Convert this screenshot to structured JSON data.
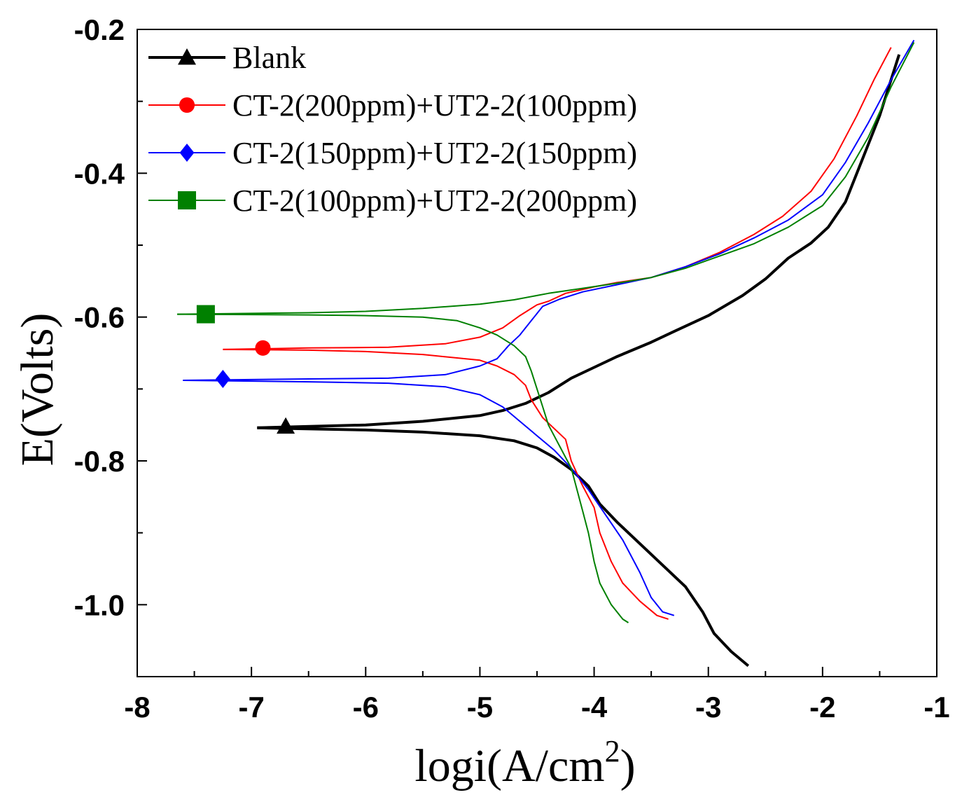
{
  "chart_data": {
    "type": "line",
    "title": "",
    "xlabel": "logi(A/cm",
    "xlabel_superscript": "2",
    "xlabel_close": ")",
    "ylabel": "E(Volts)",
    "xlim": [
      -8,
      -1
    ],
    "ylim": [
      -1.1,
      -0.2
    ],
    "x_ticks": [
      -8,
      -7,
      -6,
      -5,
      -4,
      -3,
      -2,
      -1
    ],
    "x_tick_labels": [
      "-8",
      "-7",
      "-6",
      "-5",
      "-4",
      "-3",
      "-2",
      "-1"
    ],
    "y_ticks": [
      -1.0,
      -0.8,
      -0.6,
      -0.4,
      -0.2
    ],
    "y_tick_labels": [
      "-1.0",
      "-0.8",
      "-0.6",
      "-0.4",
      "-0.2"
    ],
    "legend_position": "top-left",
    "series": [
      {
        "name": "Blank",
        "color": "#000000",
        "marker": "triangle",
        "marker_at": [
          -6.7,
          -0.752
        ],
        "anodic": [
          [
            -6.95,
            -0.754
          ],
          [
            -6.0,
            -0.75
          ],
          [
            -5.5,
            -0.745
          ],
          [
            -5.0,
            -0.737
          ],
          [
            -4.8,
            -0.73
          ],
          [
            -4.6,
            -0.72
          ],
          [
            -4.4,
            -0.705
          ],
          [
            -4.2,
            -0.685
          ],
          [
            -4.0,
            -0.67
          ],
          [
            -3.8,
            -0.655
          ],
          [
            -3.5,
            -0.635
          ],
          [
            -3.3,
            -0.62
          ],
          [
            -3.0,
            -0.598
          ],
          [
            -2.7,
            -0.57
          ],
          [
            -2.5,
            -0.547
          ],
          [
            -2.3,
            -0.518
          ],
          [
            -2.1,
            -0.497
          ],
          [
            -1.95,
            -0.475
          ],
          [
            -1.8,
            -0.44
          ],
          [
            -1.65,
            -0.38
          ],
          [
            -1.5,
            -0.32
          ],
          [
            -1.4,
            -0.27
          ],
          [
            -1.33,
            -0.235
          ]
        ],
        "cathodic": [
          [
            -6.95,
            -0.754
          ],
          [
            -6.0,
            -0.757
          ],
          [
            -5.5,
            -0.76
          ],
          [
            -5.0,
            -0.765
          ],
          [
            -4.7,
            -0.772
          ],
          [
            -4.5,
            -0.782
          ],
          [
            -4.35,
            -0.795
          ],
          [
            -4.2,
            -0.812
          ],
          [
            -4.05,
            -0.835
          ],
          [
            -3.95,
            -0.86
          ],
          [
            -3.8,
            -0.885
          ],
          [
            -3.6,
            -0.915
          ],
          [
            -3.4,
            -0.945
          ],
          [
            -3.2,
            -0.975
          ],
          [
            -3.05,
            -1.01
          ],
          [
            -2.95,
            -1.04
          ],
          [
            -2.8,
            -1.065
          ],
          [
            -2.65,
            -1.085
          ]
        ]
      },
      {
        "name": "CT-2(200ppm)+UT2-2(100ppm)",
        "color": "#ff0000",
        "marker": "circle",
        "marker_at": [
          -6.9,
          -0.643
        ],
        "anodic": [
          [
            -7.25,
            -0.645
          ],
          [
            -6.5,
            -0.643
          ],
          [
            -5.8,
            -0.642
          ],
          [
            -5.3,
            -0.637
          ],
          [
            -5.0,
            -0.628
          ],
          [
            -4.8,
            -0.615
          ],
          [
            -4.65,
            -0.598
          ],
          [
            -4.5,
            -0.583
          ],
          [
            -4.4,
            -0.578
          ],
          [
            -4.25,
            -0.567
          ],
          [
            -4.0,
            -0.558
          ],
          [
            -3.8,
            -0.552
          ],
          [
            -3.5,
            -0.545
          ],
          [
            -3.2,
            -0.53
          ],
          [
            -2.9,
            -0.51
          ],
          [
            -2.6,
            -0.485
          ],
          [
            -2.35,
            -0.46
          ],
          [
            -2.1,
            -0.425
          ],
          [
            -1.9,
            -0.38
          ],
          [
            -1.7,
            -0.32
          ],
          [
            -1.55,
            -0.27
          ],
          [
            -1.4,
            -0.225
          ]
        ],
        "cathodic": [
          [
            -7.25,
            -0.645
          ],
          [
            -6.5,
            -0.646
          ],
          [
            -6.0,
            -0.648
          ],
          [
            -5.5,
            -0.652
          ],
          [
            -5.0,
            -0.66
          ],
          [
            -4.85,
            -0.668
          ],
          [
            -4.7,
            -0.68
          ],
          [
            -4.6,
            -0.695
          ],
          [
            -4.55,
            -0.715
          ],
          [
            -4.45,
            -0.74
          ],
          [
            -4.35,
            -0.755
          ],
          [
            -4.25,
            -0.77
          ],
          [
            -4.2,
            -0.8
          ],
          [
            -4.1,
            -0.835
          ],
          [
            -4.0,
            -0.865
          ],
          [
            -3.95,
            -0.9
          ],
          [
            -3.85,
            -0.94
          ],
          [
            -3.75,
            -0.97
          ],
          [
            -3.6,
            -0.995
          ],
          [
            -3.45,
            -1.015
          ],
          [
            -3.35,
            -1.02
          ]
        ]
      },
      {
        "name": "CT-2(150ppm)+UT2-2(150ppm)",
        "color": "#0000ff",
        "marker": "diamond",
        "marker_at": [
          -7.25,
          -0.686
        ],
        "anodic": [
          [
            -7.6,
            -0.688
          ],
          [
            -6.5,
            -0.686
          ],
          [
            -5.8,
            -0.685
          ],
          [
            -5.3,
            -0.68
          ],
          [
            -5.0,
            -0.668
          ],
          [
            -4.85,
            -0.658
          ],
          [
            -4.75,
            -0.64
          ],
          [
            -4.65,
            -0.625
          ],
          [
            -4.55,
            -0.605
          ],
          [
            -4.45,
            -0.585
          ],
          [
            -4.3,
            -0.575
          ],
          [
            -4.1,
            -0.565
          ],
          [
            -3.8,
            -0.555
          ],
          [
            -3.5,
            -0.545
          ],
          [
            -3.2,
            -0.53
          ],
          [
            -2.9,
            -0.512
          ],
          [
            -2.6,
            -0.49
          ],
          [
            -2.3,
            -0.465
          ],
          [
            -2.0,
            -0.43
          ],
          [
            -1.8,
            -0.385
          ],
          [
            -1.6,
            -0.33
          ],
          [
            -1.4,
            -0.27
          ],
          [
            -1.2,
            -0.215
          ]
        ],
        "cathodic": [
          [
            -7.6,
            -0.688
          ],
          [
            -6.5,
            -0.69
          ],
          [
            -5.8,
            -0.692
          ],
          [
            -5.3,
            -0.697
          ],
          [
            -5.0,
            -0.708
          ],
          [
            -4.8,
            -0.725
          ],
          [
            -4.65,
            -0.745
          ],
          [
            -4.5,
            -0.765
          ],
          [
            -4.35,
            -0.785
          ],
          [
            -4.2,
            -0.81
          ],
          [
            -4.05,
            -0.84
          ],
          [
            -3.9,
            -0.875
          ],
          [
            -3.75,
            -0.91
          ],
          [
            -3.6,
            -0.955
          ],
          [
            -3.5,
            -0.99
          ],
          [
            -3.4,
            -1.01
          ],
          [
            -3.3,
            -1.015
          ]
        ]
      },
      {
        "name": "CT-2(100ppm)+UT2-2(200ppm)",
        "color": "#008000",
        "marker": "square",
        "marker_at": [
          -7.4,
          -0.596
        ],
        "anodic": [
          [
            -7.65,
            -0.596
          ],
          [
            -6.5,
            -0.594
          ],
          [
            -6.0,
            -0.592
          ],
          [
            -5.5,
            -0.588
          ],
          [
            -5.0,
            -0.582
          ],
          [
            -4.7,
            -0.576
          ],
          [
            -4.4,
            -0.567
          ],
          [
            -4.1,
            -0.56
          ],
          [
            -3.8,
            -0.553
          ],
          [
            -3.5,
            -0.545
          ],
          [
            -3.2,
            -0.532
          ],
          [
            -2.9,
            -0.515
          ],
          [
            -2.6,
            -0.498
          ],
          [
            -2.3,
            -0.475
          ],
          [
            -2.0,
            -0.445
          ],
          [
            -1.8,
            -0.405
          ],
          [
            -1.6,
            -0.35
          ],
          [
            -1.4,
            -0.28
          ],
          [
            -1.2,
            -0.218
          ]
        ],
        "cathodic": [
          [
            -7.65,
            -0.596
          ],
          [
            -6.5,
            -0.597
          ],
          [
            -6.0,
            -0.598
          ],
          [
            -5.5,
            -0.6
          ],
          [
            -5.2,
            -0.605
          ],
          [
            -5.0,
            -0.615
          ],
          [
            -4.85,
            -0.625
          ],
          [
            -4.7,
            -0.64
          ],
          [
            -4.6,
            -0.655
          ],
          [
            -4.55,
            -0.675
          ],
          [
            -4.5,
            -0.7
          ],
          [
            -4.45,
            -0.725
          ],
          [
            -4.4,
            -0.75
          ],
          [
            -4.3,
            -0.78
          ],
          [
            -4.2,
            -0.81
          ],
          [
            -4.15,
            -0.84
          ],
          [
            -4.1,
            -0.87
          ],
          [
            -4.05,
            -0.9
          ],
          [
            -4.0,
            -0.94
          ],
          [
            -3.95,
            -0.97
          ],
          [
            -3.85,
            -1.0
          ],
          [
            -3.75,
            -1.02
          ],
          [
            -3.7,
            -1.025
          ]
        ]
      }
    ]
  }
}
